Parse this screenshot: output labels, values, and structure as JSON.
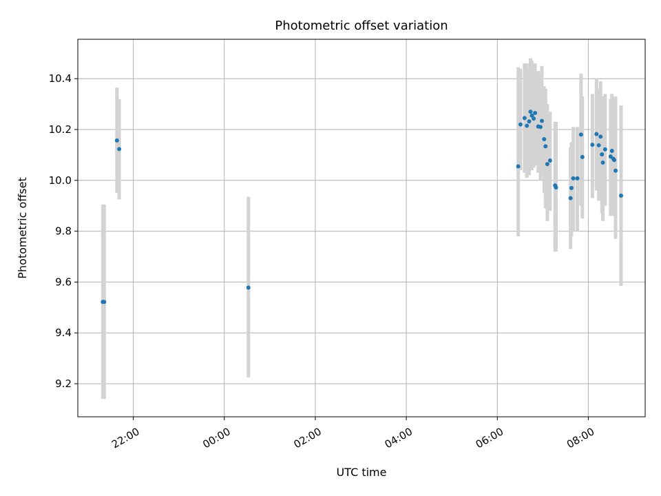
{
  "chart_data": {
    "type": "scatter",
    "title": "Photometric offset variation",
    "xlabel": "UTC time",
    "ylabel": "Photometric offset",
    "x_axis": {
      "unit": "hours since 22:00",
      "ticks": [
        {
          "value": 0,
          "label": "22:00"
        },
        {
          "value": 2,
          "label": "00:00"
        },
        {
          "value": 4,
          "label": "02:00"
        },
        {
          "value": 6,
          "label": "04:00"
        },
        {
          "value": 8,
          "label": "06:00"
        },
        {
          "value": 10,
          "label": "08:00"
        }
      ],
      "xlim": [
        -1.22,
        11.25
      ]
    },
    "y_axis": {
      "ticks": [
        9.2,
        9.4,
        9.6,
        9.8,
        10.0,
        10.2,
        10.4
      ],
      "ylim": [
        9.07,
        10.555
      ]
    },
    "grid": true,
    "marker_color": "#1f77b4",
    "errorbar_color": "#d3d3d3",
    "points": [
      {
        "x": -0.67,
        "y": 9.522,
        "lo": 9.14,
        "hi": 9.905
      },
      {
        "x": -0.64,
        "y": 9.522,
        "lo": 9.14,
        "hi": 9.905
      },
      {
        "x": -0.36,
        "y": 10.157,
        "lo": 9.95,
        "hi": 10.365
      },
      {
        "x": -0.31,
        "y": 10.123,
        "lo": 9.925,
        "hi": 10.32
      },
      {
        "x": 2.53,
        "y": 9.578,
        "lo": 9.225,
        "hi": 9.935
      },
      {
        "x": 8.46,
        "y": 10.055,
        "lo": 9.78,
        "hi": 10.445
      },
      {
        "x": 8.51,
        "y": 10.22,
        "lo": 10.04,
        "hi": 10.44
      },
      {
        "x": 8.6,
        "y": 10.245,
        "lo": 10.03,
        "hi": 10.46
      },
      {
        "x": 8.65,
        "y": 10.215,
        "lo": 10.01,
        "hi": 10.46
      },
      {
        "x": 8.7,
        "y": 10.232,
        "lo": 10.02,
        "hi": 10.44
      },
      {
        "x": 8.73,
        "y": 10.27,
        "lo": 10.045,
        "hi": 10.48
      },
      {
        "x": 8.76,
        "y": 10.255,
        "lo": 10.04,
        "hi": 10.47
      },
      {
        "x": 8.8,
        "y": 10.243,
        "lo": 10.05,
        "hi": 10.46
      },
      {
        "x": 8.83,
        "y": 10.265,
        "lo": 10.06,
        "hi": 10.46
      },
      {
        "x": 8.9,
        "y": 10.212,
        "lo": 10.03,
        "hi": 10.43
      },
      {
        "x": 8.95,
        "y": 10.21,
        "lo": 10.0,
        "hi": 10.42
      },
      {
        "x": 8.98,
        "y": 10.234,
        "lo": 10.03,
        "hi": 10.45
      },
      {
        "x": 9.03,
        "y": 10.162,
        "lo": 9.95,
        "hi": 10.37
      },
      {
        "x": 9.06,
        "y": 10.134,
        "lo": 9.89,
        "hi": 10.36
      },
      {
        "x": 9.1,
        "y": 10.064,
        "lo": 9.84,
        "hi": 10.3
      },
      {
        "x": 9.16,
        "y": 10.078,
        "lo": 9.88,
        "hi": 10.27
      },
      {
        "x": 9.27,
        "y": 9.98,
        "lo": 9.72,
        "hi": 10.23
      },
      {
        "x": 9.29,
        "y": 9.972,
        "lo": 9.72,
        "hi": 10.23
      },
      {
        "x": 9.61,
        "y": 9.93,
        "lo": 9.73,
        "hi": 10.13
      },
      {
        "x": 9.63,
        "y": 9.97,
        "lo": 9.78,
        "hi": 10.15
      },
      {
        "x": 9.67,
        "y": 10.008,
        "lo": 9.8,
        "hi": 10.21
      },
      {
        "x": 9.76,
        "y": 10.008,
        "lo": 9.8,
        "hi": 10.21
      },
      {
        "x": 9.84,
        "y": 10.18,
        "lo": 9.9,
        "hi": 10.42
      },
      {
        "x": 9.87,
        "y": 10.092,
        "lo": 9.85,
        "hi": 10.33
      },
      {
        "x": 10.09,
        "y": 10.14,
        "lo": 9.93,
        "hi": 10.34
      },
      {
        "x": 10.18,
        "y": 10.182,
        "lo": 9.96,
        "hi": 10.4
      },
      {
        "x": 10.23,
        "y": 10.138,
        "lo": 9.92,
        "hi": 10.36
      },
      {
        "x": 10.27,
        "y": 10.172,
        "lo": 9.93,
        "hi": 10.39
      },
      {
        "x": 10.3,
        "y": 10.102,
        "lo": 9.87,
        "hi": 10.33
      },
      {
        "x": 10.32,
        "y": 10.07,
        "lo": 9.84,
        "hi": 10.3
      },
      {
        "x": 10.37,
        "y": 10.122,
        "lo": 9.9,
        "hi": 10.34
      },
      {
        "x": 10.49,
        "y": 10.094,
        "lo": 9.86,
        "hi": 10.32
      },
      {
        "x": 10.52,
        "y": 10.116,
        "lo": 9.9,
        "hi": 10.34
      },
      {
        "x": 10.55,
        "y": 10.085,
        "lo": 9.87,
        "hi": 10.33
      },
      {
        "x": 10.57,
        "y": 10.08,
        "lo": 9.86,
        "hi": 10.3
      },
      {
        "x": 10.6,
        "y": 10.038,
        "lo": 9.77,
        "hi": 10.33
      },
      {
        "x": 10.72,
        "y": 9.94,
        "lo": 9.585,
        "hi": 10.295
      }
    ]
  }
}
